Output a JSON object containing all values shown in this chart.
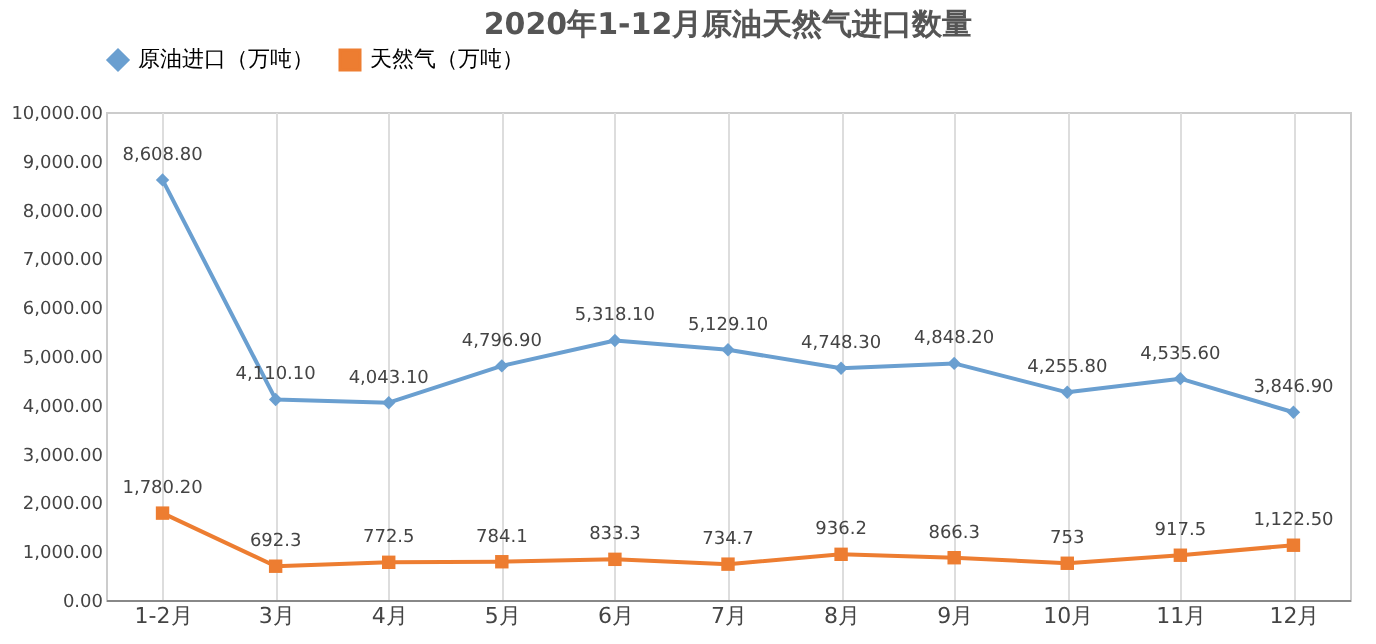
{
  "chart_data": {
    "type": "line",
    "title": "2020年1-12月原油天然气进口数量",
    "categories": [
      "1-2月",
      "3月",
      "4月",
      "5月",
      "6月",
      "7月",
      "8月",
      "9月",
      "10月",
      "11月",
      "12月"
    ],
    "series": [
      {
        "name": "原油进口（万吨）",
        "color": "#6a9fd0",
        "marker": "diamond",
        "values": [
          8608.8,
          4110.1,
          4043.1,
          4796.9,
          5318.1,
          5129.1,
          4748.3,
          4848.2,
          4255.8,
          4535.6,
          3846.9
        ],
        "value_labels": [
          "8,608.80",
          "4,110.10",
          "4,043.10",
          "4,796.90",
          "5,318.10",
          "5,129.10",
          "4,748.30",
          "4,848.20",
          "4,255.80",
          "4,535.60",
          "3,846.90"
        ]
      },
      {
        "name": "天然气（万吨）",
        "color": "#ed7d31",
        "marker": "square",
        "values": [
          1780.2,
          692.3,
          772.5,
          784.1,
          833.3,
          734.7,
          936.2,
          866.3,
          753,
          917.5,
          1122.5
        ],
        "value_labels": [
          "1,780.20",
          "692.3",
          "772.5",
          "784.1",
          "833.3",
          "734.7",
          "936.2",
          "866.3",
          "753",
          "917.5",
          "1,122.50"
        ]
      }
    ],
    "ylim": [
      0,
      10000
    ],
    "yticks": [
      {
        "value": 0,
        "label": "0.00"
      },
      {
        "value": 1000,
        "label": "1,000.00"
      },
      {
        "value": 2000,
        "label": "2,000.00"
      },
      {
        "value": 3000,
        "label": "3,000.00"
      },
      {
        "value": 4000,
        "label": "4,000.00"
      },
      {
        "value": 5000,
        "label": "5,000.00"
      },
      {
        "value": 6000,
        "label": "6,000.00"
      },
      {
        "value": 7000,
        "label": "7,000.00"
      },
      {
        "value": 8000,
        "label": "8,000.00"
      },
      {
        "value": 9000,
        "label": "9,000.00"
      },
      {
        "value": 10000,
        "label": "10,000.00"
      }
    ],
    "grid": "x",
    "legend": "top"
  }
}
